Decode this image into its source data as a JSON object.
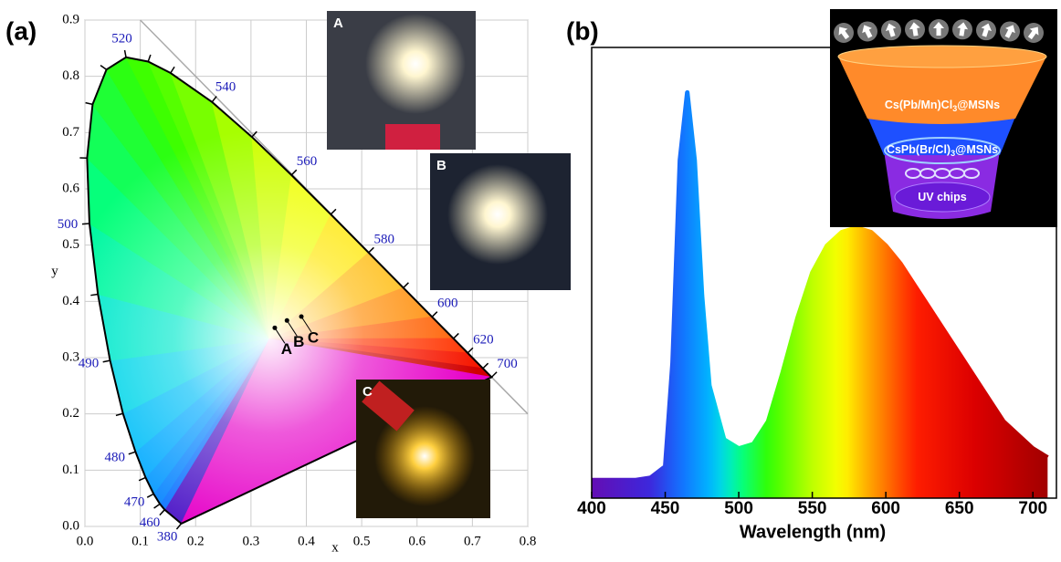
{
  "chart_data": [
    {
      "type": "cie",
      "panel_label": "(a)",
      "x_label": "x",
      "y_label": "y",
      "xlim": [
        0,
        0.8
      ],
      "ylim": [
        0,
        0.9
      ],
      "xticks": [
        {
          "value": 0,
          "label": "0.0"
        },
        0.1,
        0.2,
        0.3,
        0.4,
        0.5,
        0.6,
        0.7,
        0.8
      ],
      "yticks": [
        {
          "value": 0,
          "label": "0.0"
        },
        0.1,
        0.2,
        0.3,
        0.4,
        0.5,
        0.6,
        0.7,
        0.8,
        0.9
      ],
      "grid": true,
      "wavelength_labels": [
        380,
        460,
        470,
        480,
        490,
        500,
        520,
        540,
        560,
        580,
        600,
        620,
        700
      ],
      "labels": [
        "A",
        "B",
        "C"
      ],
      "x": [
        0.343,
        0.365,
        0.391
      ],
      "y": [
        0.353,
        0.366,
        0.373
      ],
      "photo_labels": [
        "A",
        "B",
        "C"
      ]
    },
    {
      "type": "area",
      "panel_label": "(b)",
      "x_label": "Wavelength (nm)",
      "x": [
        400,
        410,
        420,
        430,
        440,
        450,
        455,
        460,
        465,
        470,
        475,
        480,
        490,
        500,
        510,
        520,
        530,
        540,
        550,
        560,
        570,
        580,
        590,
        600,
        610,
        620,
        630,
        640,
        650,
        660,
        670,
        680,
        690,
        700,
        710
      ],
      "values": [
        0.04,
        0.04,
        0.04,
        0.04,
        0.045,
        0.07,
        0.3,
        0.75,
        0.9,
        0.75,
        0.45,
        0.25,
        0.13,
        0.11,
        0.12,
        0.17,
        0.28,
        0.4,
        0.5,
        0.56,
        0.59,
        0.6,
        0.59,
        0.56,
        0.52,
        0.47,
        0.42,
        0.37,
        0.32,
        0.27,
        0.22,
        0.17,
        0.14,
        0.11,
        0.09
      ],
      "xlim": [
        400,
        716
      ],
      "ylim": [
        0,
        1
      ],
      "xticks": [
        400,
        450,
        500,
        550,
        600,
        650,
        700
      ],
      "inset_labels": [
        [
          "Cs(Pb/Mn)Cl",
          "3",
          "@MSNs"
        ],
        [
          "CsPb(Br/Cl)",
          "3",
          "@MSNs"
        ],
        [
          "UV chips"
        ]
      ]
    }
  ]
}
